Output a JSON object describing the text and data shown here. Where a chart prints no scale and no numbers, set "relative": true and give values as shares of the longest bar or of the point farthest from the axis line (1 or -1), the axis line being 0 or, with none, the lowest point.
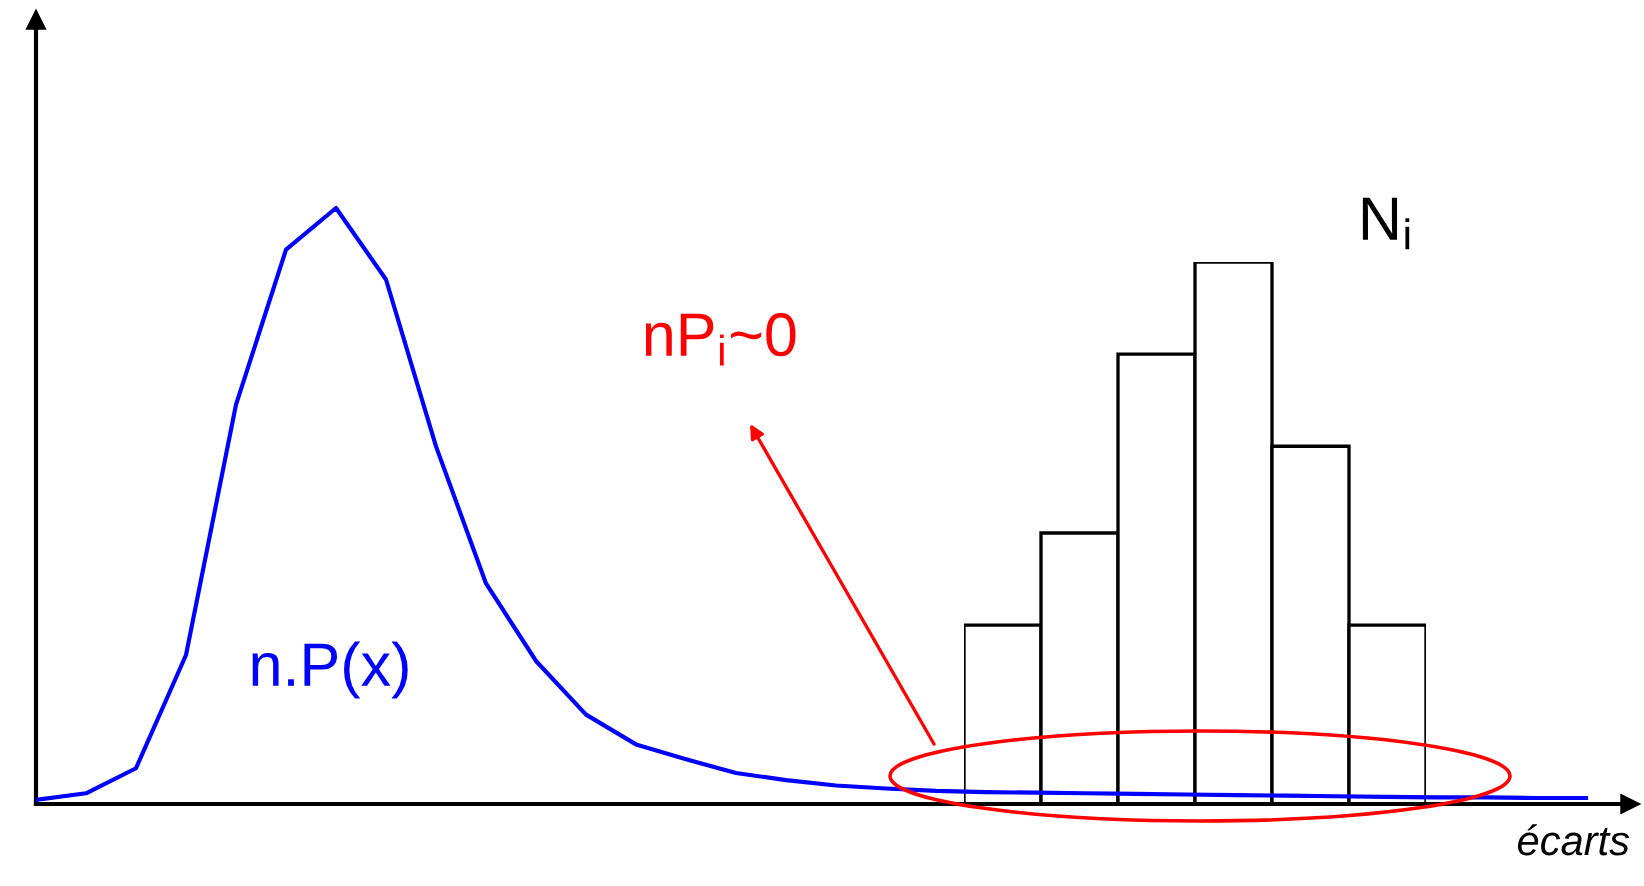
{
  "chart_data": [
    {
      "type": "line",
      "relative": true,
      "xlabel": "écarts",
      "grid": false,
      "legend": false,
      "color": "#0000ff",
      "categories": [
        null,
        null,
        null,
        null,
        null,
        null,
        null,
        null,
        null,
        null,
        null,
        null,
        null,
        null,
        null,
        null,
        null,
        null,
        null,
        null,
        null,
        null,
        null,
        null,
        null,
        null,
        null,
        null,
        null,
        null,
        null,
        null
      ],
      "values": [
        0.007,
        0.018,
        0.06,
        0.25,
        0.67,
        0.93,
        1,
        0.88,
        0.6,
        0.37,
        0.24,
        0.15,
        0.1,
        0.075,
        0.052,
        0.04,
        0.031,
        0.026,
        0.022,
        0.02,
        0.019,
        0.018,
        0.017,
        0.016,
        0.015,
        0.014,
        0.013,
        0.012,
        0.011,
        0.011,
        0.01,
        0.01
      ],
      "annotations": [
        "n.P(x)",
        "nP$_{i}$~0"
      ]
    },
    {
      "type": "bar",
      "relative": true,
      "color": "#ffffff",
      "categories": [
        null,
        null,
        null,
        null,
        null,
        null
      ],
      "values": [
        0.33,
        0.5,
        0.83,
        1,
        0.66,
        0.33
      ],
      "annotations": [
        "N$_{i}$"
      ]
    }
  ]
}
